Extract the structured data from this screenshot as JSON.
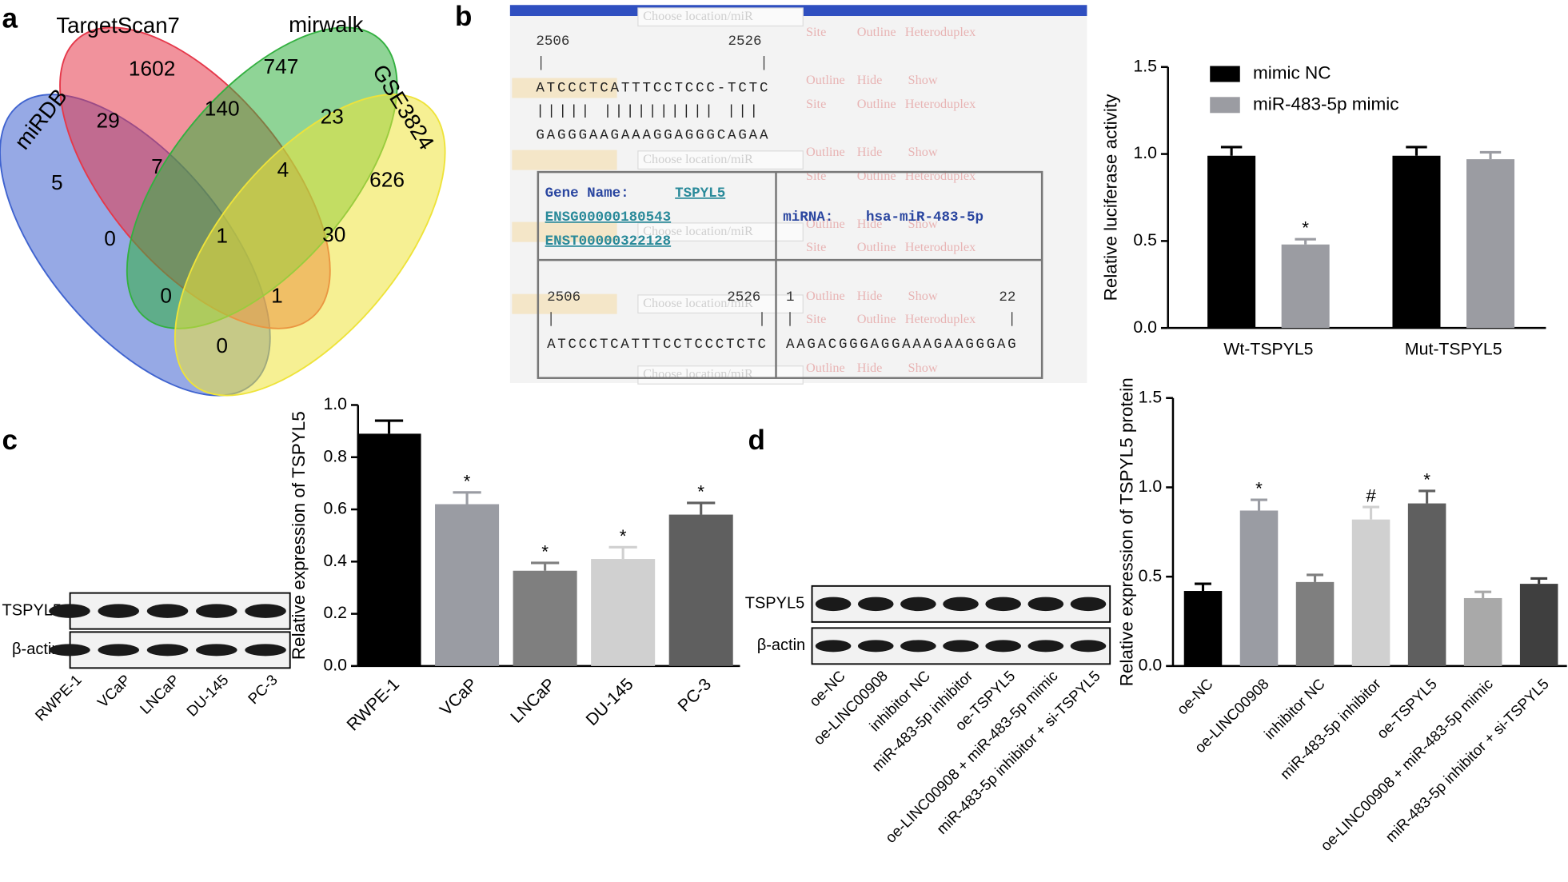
{
  "panel_labels": [
    "a",
    "b",
    "c",
    "d"
  ],
  "venn": {
    "sets": [
      {
        "name": "miRDB",
        "color": "#3f63cf"
      },
      {
        "name": "TargetScan7",
        "color": "#e5384a"
      },
      {
        "name": "mirwalk",
        "color": "#33b040"
      },
      {
        "name": "GSE3824",
        "color": "#eee33a"
      }
    ],
    "regions": [
      1602,
      747,
      29,
      140,
      23,
      5,
      7,
      4,
      626,
      0,
      1,
      30,
      0,
      1,
      0
    ]
  },
  "alignment": {
    "site_top": {
      "start": 2506,
      "end": 2526,
      "target": "ATCCCTCATTTCCTCCC-TCTC",
      "pairs": "||||| |||||||||| |||",
      "mirna": "GAGGGAAGAAAGGAGGGCAGAA"
    },
    "gene_label": "Gene Name:",
    "gene": "TSPYL5",
    "ensg": "ENSG00000180543",
    "enst": "ENST00000322128",
    "mirna_label": "miRNA:",
    "mirna": "hsa-miR-483-5p",
    "site_bottom": {
      "start": 2506,
      "end": 2526,
      "mirna_start": 1,
      "mirna_end": 22,
      "target": "ATCCCTCATTTCCTCCCTCTC",
      "mirna": "AAGACGGGAGGAAAGAAGGGAG"
    },
    "controls": [
      "Choose location/miR",
      "Site",
      "Outline",
      "Heteroduplex",
      "Hide",
      "Show"
    ]
  },
  "blots": {
    "c": {
      "rows": [
        "TSPYL5",
        "β-actin"
      ]
    },
    "d": {
      "rows": [
        "TSPYL5",
        "β-actin"
      ]
    }
  },
  "chart_data": [
    {
      "type": "bar",
      "y_label": "Relative luciferase activity",
      "categories": [
        "Wt-TSPYL5",
        "Mut-TSPYL5"
      ],
      "series": [
        {
          "name": "mimic NC",
          "color": "#000000",
          "values": [
            0.99,
            0.99
          ],
          "errors": [
            0.05,
            0.05
          ],
          "annotations": [
            null,
            null
          ]
        },
        {
          "name": "miR-483-5p mimic",
          "color": "#9b9ca2",
          "values": [
            0.48,
            0.97
          ],
          "errors": [
            0.03,
            0.04
          ],
          "annotations": [
            "*",
            null
          ]
        }
      ],
      "ylim": [
        0,
        1.5
      ],
      "yticks": [
        {
          "value": 0,
          "label": "0.0"
        },
        0.5,
        {
          "value": 1,
          "label": "1.0"
        },
        1.5
      ]
    },
    {
      "type": "bar",
      "y_label": "Relative expression of TSPYL5",
      "categories": [
        "RWPE-1",
        "VCaP",
        "LNCaP",
        "DU-145",
        "PC-3"
      ],
      "values": [
        0.89,
        0.62,
        0.365,
        0.41,
        0.58
      ],
      "errors": [
        0.05,
        0.045,
        0.03,
        0.045,
        0.045
      ],
      "colors": [
        "#000000",
        "#9a9ca3",
        "#7f7f7f",
        "#d0d0d0",
        "#5f5f5f"
      ],
      "annotations": [
        null,
        "*",
        "*",
        "*",
        "*"
      ],
      "ylim": [
        0,
        1
      ],
      "yticks": [
        {
          "value": 0,
          "label": "0.0"
        },
        0.2,
        0.4,
        0.6,
        0.8,
        {
          "value": 1,
          "label": "1.0"
        }
      ]
    },
    {
      "type": "bar",
      "y_label": "Relative expression of TSPYL5 protein",
      "categories": [
        "oe-NC",
        "oe-LINC00908",
        "inhibitor NC",
        "miR-483-5p inhibitor",
        "oe-TSPYL5",
        "oe-LINC00908 + miR-483-5p mimic",
        "miR-483-5p inhibitor + si-TSPYL5"
      ],
      "values": [
        0.42,
        0.87,
        0.47,
        0.82,
        0.91,
        0.38,
        0.46
      ],
      "errors": [
        0.04,
        0.06,
        0.04,
        0.07,
        0.07,
        0.035,
        0.03
      ],
      "colors": [
        "#000000",
        "#9a9ca3",
        "#7f7f7f",
        "#d0d0d0",
        "#5f5f5f",
        "#a9a9a9",
        "#3f3f3f"
      ],
      "annotations": [
        null,
        "*",
        null,
        "#",
        "*",
        null,
        null
      ],
      "ylim": [
        0,
        1.5
      ],
      "yticks": [
        {
          "value": 0,
          "label": "0.0"
        },
        0.5,
        {
          "value": 1,
          "label": "1.0"
        },
        1.5
      ]
    }
  ]
}
